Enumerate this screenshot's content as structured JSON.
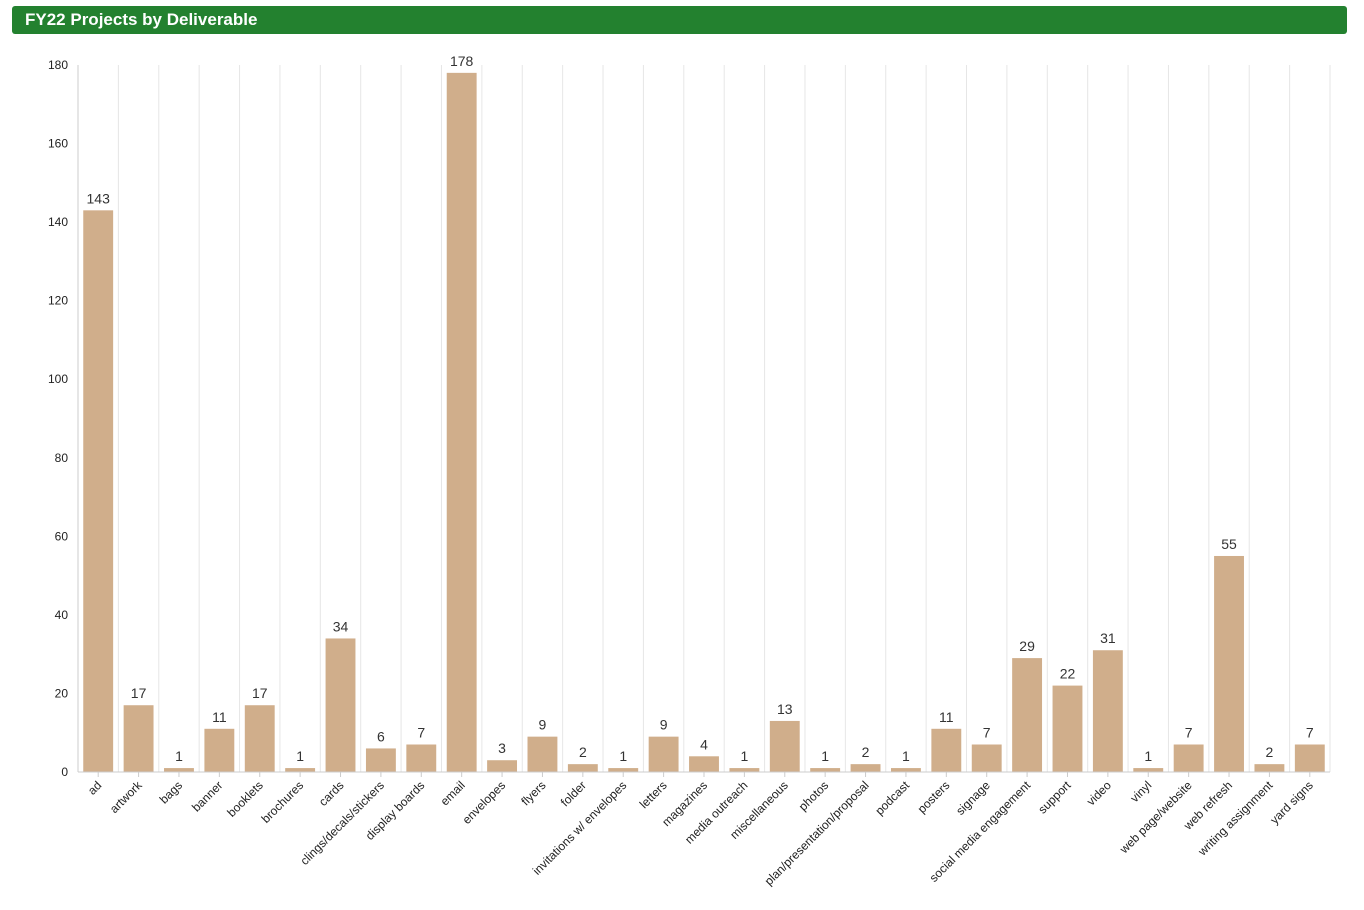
{
  "header": {
    "title": "FY22 Projects by Deliverable"
  },
  "chart_data": {
    "type": "bar",
    "title": "FY22 Projects by Deliverable",
    "xlabel": "",
    "ylabel": "",
    "ylim": [
      0,
      180
    ],
    "yticks": [
      0,
      20,
      40,
      60,
      80,
      100,
      120,
      140,
      160,
      180
    ],
    "grid": "vertical",
    "legend": "none",
    "bar_color": "#d0ae8b",
    "header_color": "#23812f",
    "categories": [
      "ad",
      "artwork",
      "bags",
      "banner",
      "booklets",
      "brochures",
      "cards",
      "clings/decals/stickers",
      "display boards",
      "email",
      "envelopes",
      "flyers",
      "folder",
      "invitations w/ envelopes",
      "letters",
      "magazines",
      "media outreach",
      "miscellaneous",
      "photos",
      "plan/presentation/proposal",
      "podcast",
      "posters",
      "signage",
      "social media engagement",
      "support",
      "video",
      "vinyl",
      "web page/website",
      "web refresh",
      "writing assignment",
      "yard signs"
    ],
    "values": [
      143,
      17,
      1,
      11,
      17,
      1,
      34,
      6,
      7,
      178,
      3,
      9,
      2,
      1,
      9,
      4,
      1,
      13,
      1,
      2,
      1,
      11,
      7,
      29,
      22,
      31,
      1,
      7,
      55,
      2,
      7
    ]
  }
}
